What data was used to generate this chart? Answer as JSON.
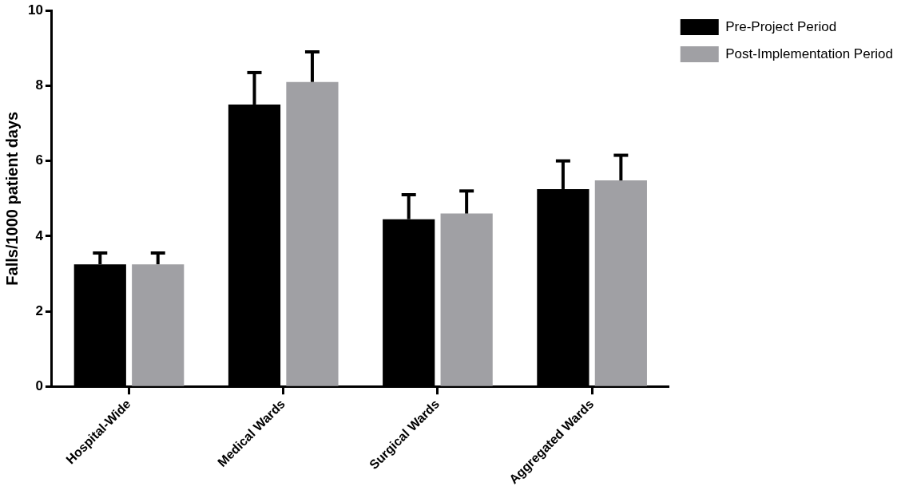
{
  "chart_data": {
    "type": "bar",
    "ylabel": "Falls/1000 patient days",
    "categories": [
      "Hospital-Wide",
      "Medical Wards",
      "Surgical Wards",
      "Aggregated Wards"
    ],
    "series": [
      {
        "name": "Pre-Project Period",
        "color": "#000000",
        "values": [
          3.25,
          7.5,
          4.45,
          5.25
        ],
        "errors": [
          [
            3.25,
            3.55
          ],
          [
            7.5,
            8.35
          ],
          [
            4.45,
            5.1
          ],
          [
            5.25,
            6.0
          ]
        ]
      },
      {
        "name": "Post-Implementation Period",
        "color": "#a0a0a4",
        "values": [
          3.25,
          8.1,
          4.6,
          5.48
        ],
        "errors": [
          [
            3.25,
            3.55
          ],
          [
            8.1,
            8.9
          ],
          [
            4.6,
            5.2
          ],
          [
            5.48,
            6.15
          ]
        ]
      }
    ],
    "ylim": [
      0,
      10
    ],
    "yticks": [
      0,
      2,
      4,
      6,
      8,
      10
    ],
    "grid": false,
    "legend": "top right"
  }
}
